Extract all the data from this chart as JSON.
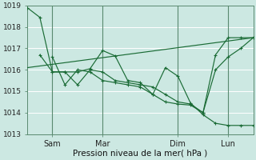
{
  "background_color": "#cce8e2",
  "grid_color": "#b0ddd5",
  "line_color": "#1a6b35",
  "xlabel": "Pression niveau de la mer( hPa )",
  "ylim": [
    1013,
    1019
  ],
  "yticks": [
    1013,
    1014,
    1015,
    1016,
    1017,
    1018,
    1019
  ],
  "xtick_labels": [
    "Sam",
    "Mar",
    "Dim",
    "Lun"
  ],
  "xtick_positions": [
    16,
    48,
    96,
    128
  ],
  "vlines_x": [
    16,
    48,
    96,
    128
  ],
  "xlim": [
    0,
    144
  ],
  "trend_x": [
    0,
    144
  ],
  "trend_y": [
    1016.1,
    1017.5
  ],
  "s1_x": [
    0,
    8,
    16,
    24,
    32,
    40,
    48,
    56,
    64,
    72,
    80,
    88,
    96,
    104,
    112,
    120,
    128,
    136,
    144
  ],
  "s1_y": [
    1018.9,
    1018.45,
    1015.9,
    1015.9,
    1015.9,
    1016.05,
    1016.9,
    1016.65,
    1015.5,
    1015.4,
    1014.85,
    1016.1,
    1015.7,
    1014.45,
    1013.9,
    1013.5,
    1013.4,
    1013.4,
    1013.4
  ],
  "s2_x": [
    16,
    24,
    32,
    40,
    48,
    56,
    64,
    72,
    80,
    88,
    96,
    104,
    112,
    120,
    128,
    136,
    144
  ],
  "s2_y": [
    1016.6,
    1015.3,
    1016.0,
    1015.9,
    1015.5,
    1015.4,
    1015.3,
    1015.2,
    1014.85,
    1014.5,
    1014.4,
    1014.35,
    1014.0,
    1016.0,
    1016.6,
    1017.0,
    1017.5
  ],
  "s3_x": [
    8,
    16,
    24,
    32,
    40,
    48,
    56,
    64,
    72,
    80,
    88,
    96,
    104,
    112,
    120,
    128,
    136,
    144
  ],
  "s3_y": [
    1016.7,
    1015.9,
    1015.9,
    1015.3,
    1016.0,
    1015.9,
    1015.5,
    1015.4,
    1015.3,
    1015.2,
    1014.85,
    1014.5,
    1014.4,
    1014.0,
    1016.7,
    1017.5,
    1017.5,
    1017.5
  ]
}
